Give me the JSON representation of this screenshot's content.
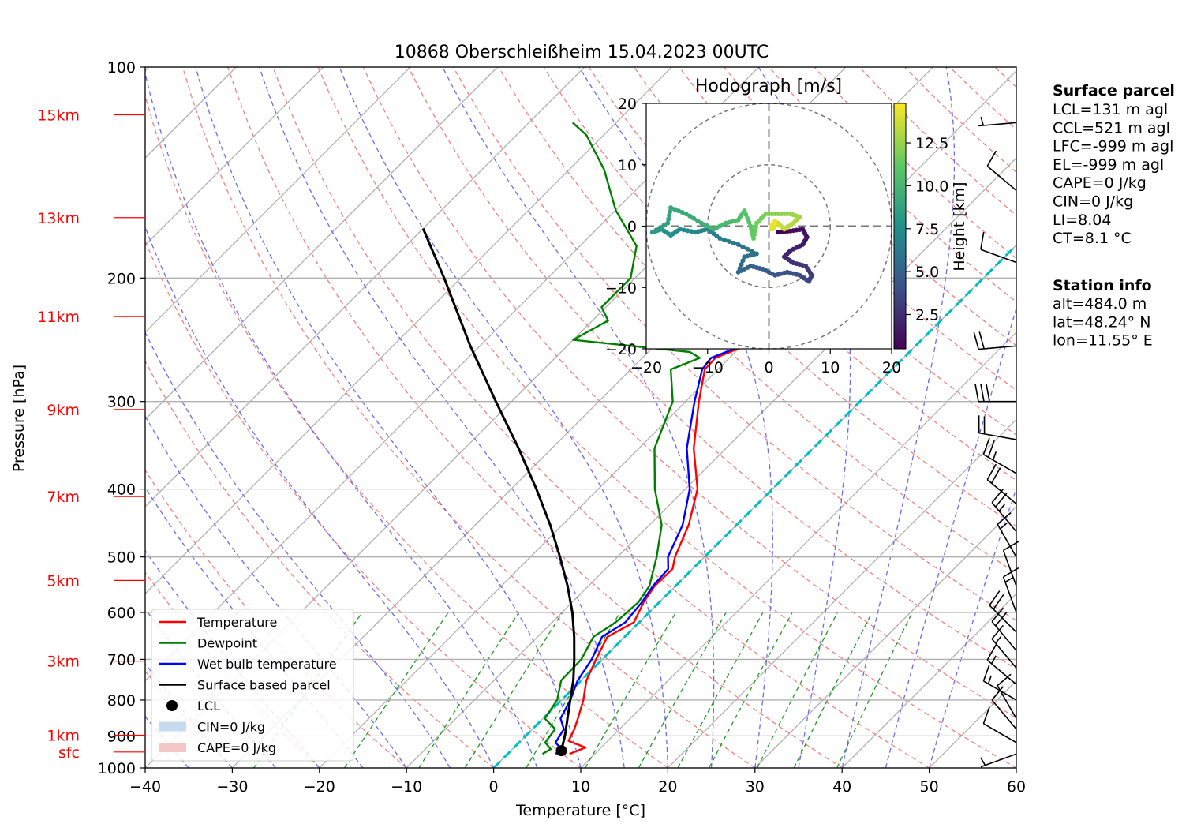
{
  "chart_data": {
    "type": "skew-t",
    "title": "10868 Oberschleißheim 15.04.2023 00UTC",
    "xlabel": "Temperature [°C]",
    "ylabel": "Pressure [hPa]",
    "xlim": [
      -40,
      60
    ],
    "ylim": [
      1000,
      100
    ],
    "x_ticks": [
      "−40",
      "−30",
      "−20",
      "−10",
      "0",
      "10",
      "20",
      "30",
      "40",
      "50",
      "60"
    ],
    "y_ticks": [
      {
        "p": 100,
        "label": "100"
      },
      {
        "p": 200,
        "label": "200"
      },
      {
        "p": 300,
        "label": "300"
      },
      {
        "p": 400,
        "label": "400"
      },
      {
        "p": 500,
        "label": "500"
      },
      {
        "p": 600,
        "label": "600"
      },
      {
        "p": 700,
        "label": "700"
      },
      {
        "p": 800,
        "label": "800"
      },
      {
        "p": 900,
        "label": "900"
      },
      {
        "p": 1000,
        "label": "1000"
      }
    ],
    "height_labels": [
      {
        "p": 949,
        "label": "sfc"
      },
      {
        "p": 898,
        "label": "1km"
      },
      {
        "p": 704,
        "label": "3km"
      },
      {
        "p": 540,
        "label": "5km"
      },
      {
        "p": 410,
        "label": "7km"
      },
      {
        "p": 308,
        "label": "9km"
      },
      {
        "p": 227,
        "label": "11km"
      },
      {
        "p": 164,
        "label": "13km"
      },
      {
        "p": 117,
        "label": "15km"
      }
    ],
    "series": [
      {
        "name": "Temperature",
        "color": "#ff0000",
        "points": [
          [
            7.1,
            955
          ],
          [
            8.2,
            935
          ],
          [
            5.5,
            915
          ],
          [
            4.8,
            880
          ],
          [
            4.0,
            850
          ],
          [
            2.5,
            800
          ],
          [
            0.6,
            750
          ],
          [
            -0.7,
            700
          ],
          [
            -2.0,
            650
          ],
          [
            -0.6,
            620
          ],
          [
            -1.8,
            580
          ],
          [
            -2.4,
            550
          ],
          [
            -2.3,
            520
          ],
          [
            -3.4,
            500
          ],
          [
            -5.5,
            450
          ],
          [
            -8.6,
            400
          ],
          [
            -13.7,
            350
          ],
          [
            -18.5,
            300
          ],
          [
            -21.5,
            270
          ],
          [
            -21.6,
            260
          ],
          [
            -19.6,
            250
          ],
          [
            -24.0,
            220
          ],
          [
            -28.5,
            200
          ],
          [
            -33.5,
            180
          ],
          [
            -39.5,
            160
          ],
          [
            -45.5,
            140
          ],
          [
            -52.0,
            125
          ],
          [
            -57.0,
            115
          ]
        ]
      },
      {
        "name": "Dewpoint",
        "color": "#008000",
        "points": [
          [
            4.0,
            955
          ],
          [
            4.4,
            940
          ],
          [
            3.0,
            920
          ],
          [
            2.6,
            880
          ],
          [
            0.2,
            850
          ],
          [
            -0.5,
            800
          ],
          [
            -2.3,
            750
          ],
          [
            -2.4,
            700
          ],
          [
            -3.6,
            650
          ],
          [
            -2.7,
            620
          ],
          [
            -2.4,
            580
          ],
          [
            -3.0,
            550
          ],
          [
            -5.5,
            500
          ],
          [
            -8.6,
            450
          ],
          [
            -13.5,
            400
          ],
          [
            -18.2,
            350
          ],
          [
            -21.5,
            300
          ],
          [
            -25.4,
            270
          ],
          [
            -23.4,
            260
          ],
          [
            -25.2,
            255
          ],
          [
            -40.0,
            245
          ],
          [
            -38.2,
            230
          ],
          [
            -40.5,
            220
          ],
          [
            -40.5,
            200
          ],
          [
            -43.5,
            180
          ],
          [
            -50.0,
            160
          ],
          [
            -56.0,
            140
          ],
          [
            -62.0,
            125
          ],
          [
            -65.0,
            120
          ]
        ]
      },
      {
        "name": "Wet bulb temperature",
        "color": "#0000ff",
        "points": [
          [
            5.5,
            955
          ],
          [
            5.6,
            940
          ],
          [
            4.2,
            920
          ],
          [
            3.6,
            880
          ],
          [
            2.0,
            850
          ],
          [
            1.0,
            800
          ],
          [
            -0.4,
            750
          ],
          [
            -1.2,
            700
          ],
          [
            -2.6,
            650
          ],
          [
            -1.6,
            620
          ],
          [
            -2.0,
            580
          ],
          [
            -2.6,
            550
          ],
          [
            -2.8,
            520
          ],
          [
            -4.2,
            500
          ],
          [
            -6.2,
            450
          ],
          [
            -9.5,
            400
          ],
          [
            -14.5,
            350
          ],
          [
            -19.0,
            300
          ],
          [
            -21.8,
            270
          ],
          [
            -22.1,
            260
          ],
          [
            -20.0,
            250
          ],
          [
            -24.5,
            220
          ],
          [
            -28.8,
            200
          ],
          [
            -33.8,
            180
          ],
          [
            -39.8,
            160
          ],
          [
            -45.8,
            140
          ],
          [
            -52.3,
            125
          ],
          [
            -57.3,
            115
          ]
        ]
      },
      {
        "name": "Surface based parcel",
        "color": "#000000",
        "points": [
          [
            5.8,
            945
          ],
          [
            4.5,
            900
          ],
          [
            2.8,
            850
          ],
          [
            1.0,
            800
          ],
          [
            -0.9,
            750
          ],
          [
            -3.2,
            700
          ],
          [
            -5.8,
            650
          ],
          [
            -8.8,
            600
          ],
          [
            -12.4,
            550
          ],
          [
            -16.6,
            500
          ],
          [
            -21.4,
            450
          ],
          [
            -27.1,
            400
          ],
          [
            -33.8,
            350
          ],
          [
            -41.8,
            300
          ],
          [
            -51.1,
            250
          ],
          [
            -61.9,
            200
          ],
          [
            -70.0,
            170
          ]
        ]
      }
    ],
    "lcl": {
      "name": "LCL",
      "t": 5.8,
      "p": 945
    },
    "legend": {
      "placement": "lower-left",
      "entries": [
        {
          "label": "Temperature",
          "kind": "line",
          "color": "#ff0000"
        },
        {
          "label": "Dewpoint",
          "kind": "line",
          "color": "#008000"
        },
        {
          "label": "Wet bulb temperature",
          "kind": "line",
          "color": "#0000ff"
        },
        {
          "label": "Surface based parcel",
          "kind": "line",
          "color": "#000000"
        },
        {
          "label": "LCL",
          "kind": "dot",
          "color": "#000000"
        },
        {
          "label": "CIN=0 J/kg",
          "kind": "patch",
          "color": "#c6dbef"
        },
        {
          "label": "CAPE=0 J/kg",
          "kind": "patch",
          "color": "#f4c7c7"
        }
      ]
    },
    "wind_barbs": [
      {
        "p": 955,
        "speed_kt": 5,
        "dir_deg": 250
      },
      {
        "p": 920,
        "speed_kt": 10,
        "dir_deg": 300
      },
      {
        "p": 880,
        "speed_kt": 10,
        "dir_deg": 320
      },
      {
        "p": 850,
        "speed_kt": 10,
        "dir_deg": 330
      },
      {
        "p": 800,
        "speed_kt": 15,
        "dir_deg": 300
      },
      {
        "p": 760,
        "speed_kt": 15,
        "dir_deg": 310
      },
      {
        "p": 720,
        "speed_kt": 15,
        "dir_deg": 320
      },
      {
        "p": 680,
        "speed_kt": 20,
        "dir_deg": 320
      },
      {
        "p": 640,
        "speed_kt": 20,
        "dir_deg": 315
      },
      {
        "p": 600,
        "speed_kt": 15,
        "dir_deg": 340
      },
      {
        "p": 550,
        "speed_kt": 10,
        "dir_deg": 340
      },
      {
        "p": 500,
        "speed_kt": 15,
        "dir_deg": 330
      },
      {
        "p": 460,
        "speed_kt": 25,
        "dir_deg": 320
      },
      {
        "p": 420,
        "speed_kt": 20,
        "dir_deg": 310
      },
      {
        "p": 380,
        "speed_kt": 25,
        "dir_deg": 300
      },
      {
        "p": 340,
        "speed_kt": 20,
        "dir_deg": 280
      },
      {
        "p": 300,
        "speed_kt": 30,
        "dir_deg": 270
      },
      {
        "p": 250,
        "speed_kt": 20,
        "dir_deg": 265
      },
      {
        "p": 190,
        "speed_kt": 10,
        "dir_deg": 290
      },
      {
        "p": 150,
        "speed_kt": 10,
        "dir_deg": 310
      },
      {
        "p": 120,
        "speed_kt": 5,
        "dir_deg": 265
      }
    ],
    "hodograph": {
      "title": "Hodograph [m/s]",
      "xlim": [
        -20,
        20
      ],
      "ylim": [
        -20,
        20
      ],
      "ticks": [
        "−20",
        "−10",
        "0",
        "10",
        "20"
      ],
      "rings": [
        10,
        20
      ],
      "colorbar": {
        "label": "Height [km]",
        "min": 0.5,
        "max": 14.8,
        "ticks": [
          "2.5",
          "5.0",
          "7.5",
          "10.0",
          "12.5"
        ],
        "tick_values": [
          2.5,
          5.0,
          7.5,
          10.0,
          12.5
        ],
        "colormap": "viridis"
      },
      "points": [
        [
          1.5,
          -1.0,
          0.5
        ],
        [
          3.5,
          -0.8,
          0.8
        ],
        [
          5.5,
          -0.5,
          1.1
        ],
        [
          6.2,
          -1.8,
          1.4
        ],
        [
          5.5,
          -3.0,
          1.7
        ],
        [
          3.5,
          -4.0,
          2.0
        ],
        [
          2.5,
          -5.0,
          2.3
        ],
        [
          4.0,
          -6.0,
          2.6
        ],
        [
          6.0,
          -6.5,
          2.9
        ],
        [
          7.0,
          -8.0,
          3.2
        ],
        [
          6.5,
          -9.0,
          3.5
        ],
        [
          5.0,
          -8.0,
          3.8
        ],
        [
          3.0,
          -7.5,
          4.1
        ],
        [
          1.0,
          -8.0,
          4.4
        ],
        [
          -1.0,
          -7.0,
          4.7
        ],
        [
          -3.0,
          -6.5,
          5.0
        ],
        [
          -5.0,
          -7.5,
          5.3
        ],
        [
          -4.0,
          -5.0,
          5.6
        ],
        [
          -2.0,
          -4.5,
          5.9
        ],
        [
          -5.0,
          -3.0,
          6.2
        ],
        [
          -8.0,
          -2.0,
          6.5
        ],
        [
          -10.0,
          -0.5,
          6.8
        ],
        [
          -12.0,
          -1.0,
          7.1
        ],
        [
          -14.5,
          -0.5,
          7.4
        ],
        [
          -16.0,
          -1.5,
          7.7
        ],
        [
          -17.5,
          -0.5,
          8.0
        ],
        [
          -19.0,
          -1.0,
          8.3
        ],
        [
          -16.5,
          0.5,
          8.6
        ],
        [
          -16.0,
          3.0,
          8.9
        ],
        [
          -13.5,
          2.0,
          9.2
        ],
        [
          -11.0,
          0.5,
          9.5
        ],
        [
          -9.0,
          -0.5,
          9.8
        ],
        [
          -7.0,
          0.5,
          10.1
        ],
        [
          -5.0,
          1.0,
          10.4
        ],
        [
          -4.0,
          2.5,
          10.7
        ],
        [
          -3.0,
          0.0,
          11.0
        ],
        [
          -2.5,
          -2.0,
          11.3
        ],
        [
          -2.0,
          0.5,
          11.6
        ],
        [
          -0.5,
          2.0,
          11.9
        ],
        [
          1.5,
          2.0,
          12.2
        ],
        [
          3.5,
          2.0,
          12.5
        ],
        [
          5.0,
          1.5,
          12.8
        ],
        [
          4.0,
          0.5,
          13.1
        ],
        [
          2.5,
          -0.5,
          13.4
        ],
        [
          1.5,
          0.5,
          13.7
        ],
        [
          0.5,
          -0.5,
          14.0
        ],
        [
          1.0,
          0.8,
          14.3
        ],
        [
          0.2,
          -0.2,
          14.6
        ]
      ]
    },
    "surface_parcel": {
      "heading": "Surface parcel",
      "lines": [
        "LCL=131 m agl",
        "CCL=521 m agl",
        "LFC=-999 m agl",
        "EL=-999 m agl",
        "CAPE=0 J/kg",
        "CIN=0 J/kg",
        "LI=8.04",
        "CT=8.1 °C"
      ]
    },
    "station_info": {
      "heading": "Station info",
      "lines": [
        "alt=484.0 m",
        "lat=48.24° N",
        "lon=11.55° E"
      ]
    }
  }
}
